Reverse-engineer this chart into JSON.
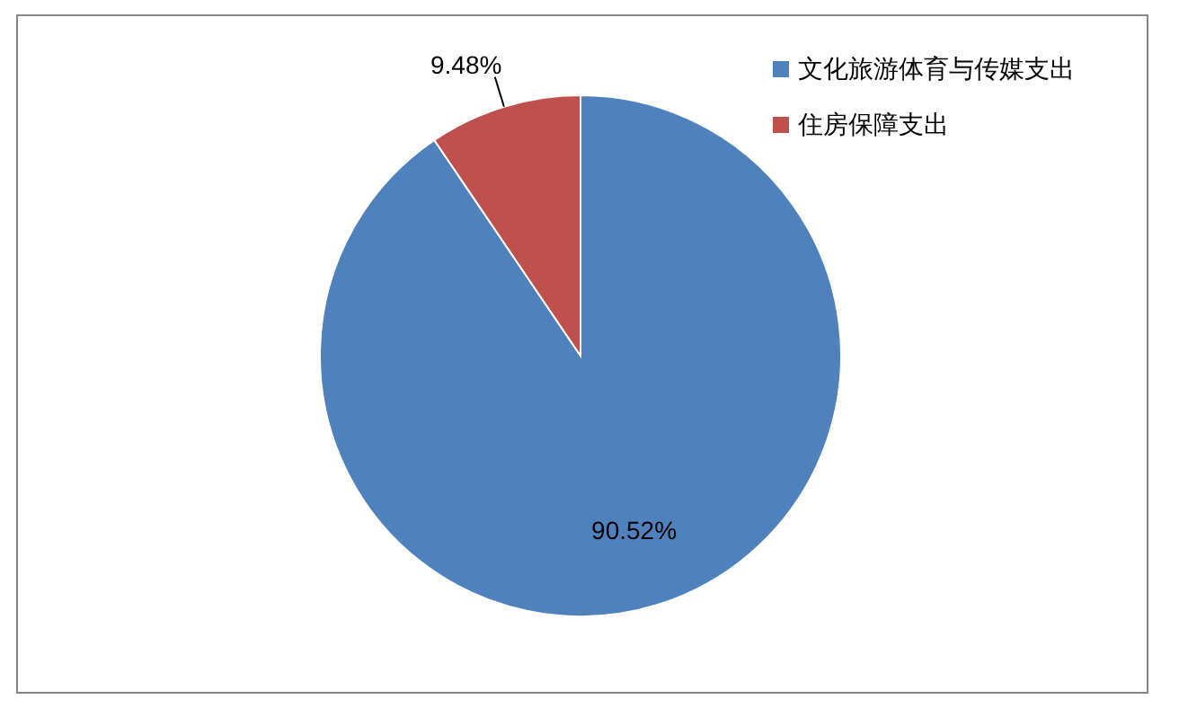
{
  "chart_data": {
    "type": "pie",
    "categories": [
      "文化旅游体育与传媒支出",
      "住房保障支出"
    ],
    "values": [
      90.52,
      9.48
    ],
    "colors": [
      "#4f81bd",
      "#c0504d"
    ],
    "value_labels": [
      "90.52%",
      "9.48%"
    ],
    "legend": "right"
  }
}
